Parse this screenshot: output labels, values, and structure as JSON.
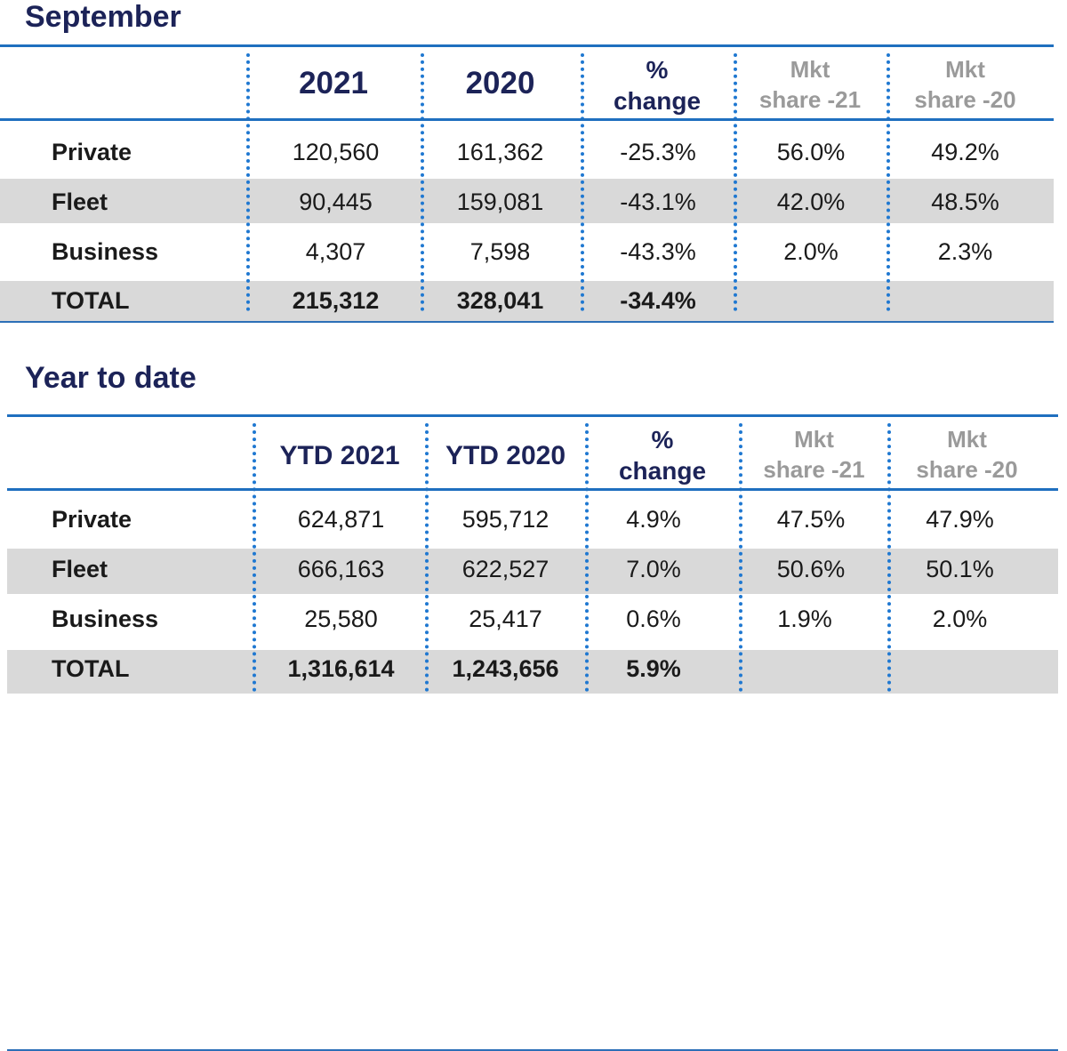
{
  "september": {
    "title": "September",
    "headers": {
      "col_2021": "2021",
      "col_2020": "2020",
      "pct_line1": "%",
      "pct_line2": "change",
      "mkt21_line1": "Mkt",
      "mkt21_line2": "share -21",
      "mkt20_line1": "Mkt",
      "mkt20_line2": "share -20"
    },
    "rows": [
      {
        "label": "Private",
        "v2021": "120,560",
        "v2020": "161,362",
        "change": "-25.3%",
        "share21": "56.0%",
        "share20": "49.2%"
      },
      {
        "label": "Fleet",
        "v2021": "90,445",
        "v2020": "159,081",
        "change": "-43.1%",
        "share21": "42.0%",
        "share20": "48.5%"
      },
      {
        "label": "Business",
        "v2021": "4,307",
        "v2020": "7,598",
        "change": "-43.3%",
        "share21": "2.0%",
        "share20": "2.3%"
      },
      {
        "label": "TOTAL",
        "v2021": "215,312",
        "v2020": "328,041",
        "change": "-34.4%",
        "share21": "",
        "share20": ""
      }
    ]
  },
  "ytd": {
    "title": "Year to date",
    "headers": {
      "col_2021": "YTD 2021",
      "col_2020": "YTD 2020",
      "pct_line1": "%",
      "pct_line2": "change",
      "mkt21_line1": "Mkt",
      "mkt21_line2": "share -21",
      "mkt20_line1": "Mkt",
      "mkt20_line2": "share -20"
    },
    "rows": [
      {
        "label": "Private",
        "v2021": "624,871",
        "v2020": "595,712",
        "change": "4.9%",
        "share21": "47.5%",
        "share20": "47.9%"
      },
      {
        "label": "Fleet",
        "v2021": "666,163",
        "v2020": "622,527",
        "change": "7.0%",
        "share21": "50.6%",
        "share20": "50.1%"
      },
      {
        "label": "Business",
        "v2021": "25,580",
        "v2020": "25,417",
        "change": "0.6%",
        "share21": "1.9%",
        "share20": "2.0%"
      },
      {
        "label": "TOTAL",
        "v2021": "1,316,614",
        "v2020": "1,243,656",
        "change": "5.9%",
        "share21": "",
        "share20": ""
      }
    ]
  },
  "colors": {
    "title": "#1c2358",
    "rule": "#1f6fbf",
    "dotted_divider": "#1f78d1",
    "band": "#d9d9d9",
    "muted_header": "#9a9a9a"
  }
}
